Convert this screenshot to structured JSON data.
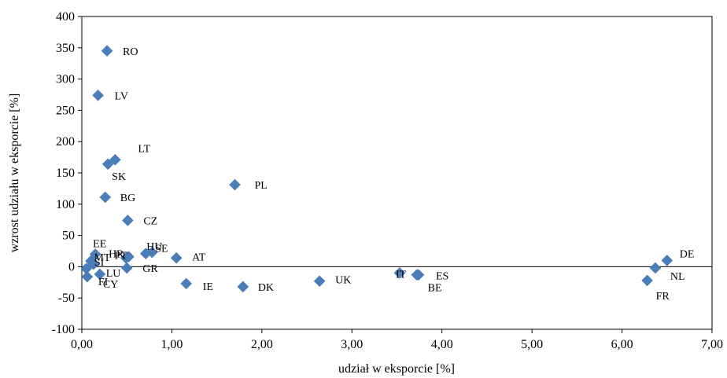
{
  "chart_data": {
    "type": "scatter",
    "title": "",
    "xlabel": "udział w eksporcie [%]",
    "ylabel": "wzrost udziału w eksporcie [%]",
    "xlim": [
      0,
      7
    ],
    "ylim": [
      -100,
      400
    ],
    "x_ticks": [
      "0,00",
      "1,00",
      "2,00",
      "3,00",
      "4,00",
      "5,00",
      "6,00",
      "7,00"
    ],
    "y_ticks": [
      "400",
      "350",
      "300",
      "250",
      "200",
      "150",
      "100",
      "50",
      "0",
      "-50",
      "-100"
    ],
    "grid": false,
    "legend": "none",
    "marker_color": "#4a7ebb",
    "points": [
      {
        "label": "RO",
        "x": 0.28,
        "y": 345
      },
      {
        "label": "LV",
        "x": 0.18,
        "y": 274
      },
      {
        "label": "LT",
        "x": 0.37,
        "y": 171
      },
      {
        "label": "SK",
        "x": 0.29,
        "y": 164
      },
      {
        "label": "PL",
        "x": 1.7,
        "y": 131
      },
      {
        "label": "BG",
        "x": 0.26,
        "y": 111
      },
      {
        "label": "CZ",
        "x": 0.51,
        "y": 74
      },
      {
        "label": "EE",
        "x": 0.15,
        "y": 20
      },
      {
        "label": "HU",
        "x": 0.78,
        "y": 23
      },
      {
        "label": "HR",
        "x": 0.49,
        "y": 14
      },
      {
        "label": "SE",
        "x": 0.71,
        "y": 21
      },
      {
        "label": "PT",
        "x": 0.52,
        "y": 16
      },
      {
        "label": "AT",
        "x": 1.05,
        "y": 14
      },
      {
        "label": "MT",
        "x": 0.1,
        "y": 9
      },
      {
        "label": "SI",
        "x": 0.13,
        "y": 4
      },
      {
        "label": "LU",
        "x": 0.05,
        "y": -3
      },
      {
        "label": "GR",
        "x": 0.5,
        "y": -2
      },
      {
        "label": "CY",
        "x": 0.06,
        "y": -16
      },
      {
        "label": "FI",
        "x": 0.2,
        "y": -12
      },
      {
        "label": "IE",
        "x": 1.16,
        "y": -27
      },
      {
        "label": "DK",
        "x": 1.79,
        "y": -32
      },
      {
        "label": "UK",
        "x": 2.64,
        "y": -23
      },
      {
        "label": "IT",
        "x": 3.53,
        "y": -10
      },
      {
        "label": "ES",
        "x": 3.74,
        "y": -13
      },
      {
        "label": "BE",
        "x": 3.72,
        "y": -13
      },
      {
        "label": "DE",
        "x": 6.5,
        "y": 10
      },
      {
        "label": "NL",
        "x": 6.37,
        "y": -2
      },
      {
        "label": "FR",
        "x": 6.28,
        "y": -22
      }
    ]
  }
}
